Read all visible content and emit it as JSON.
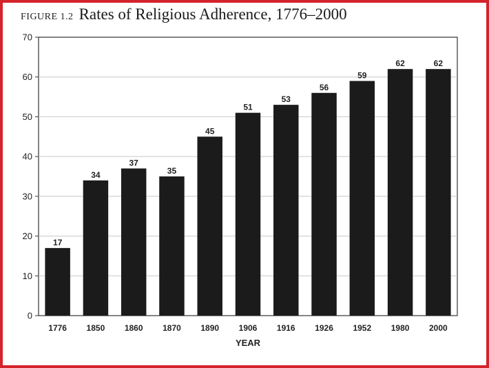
{
  "figure": {
    "label": "FIGURE 1.2",
    "title": "Rates of Religious Adherence, 1776–2000"
  },
  "colors": {
    "bar": "#1b1b1b",
    "frame": "#d4232a",
    "grid": "#c8c8c8"
  },
  "chart_data": {
    "type": "bar",
    "categories": [
      "1776",
      "1850",
      "1860",
      "1870",
      "1890",
      "1906",
      "1916",
      "1926",
      "1952",
      "1980",
      "2000"
    ],
    "values": [
      17,
      34,
      37,
      35,
      45,
      51,
      53,
      56,
      59,
      62,
      62
    ],
    "data_labels": [
      "17",
      "34",
      "37",
      "35",
      "45",
      "51",
      "53",
      "56",
      "59",
      "62",
      "62"
    ],
    "xlabel": "YEAR",
    "ylabel": "",
    "ylim": [
      0,
      70
    ],
    "yticks": [
      0,
      10,
      20,
      30,
      40,
      50,
      60,
      70
    ],
    "grid": true,
    "legend": false
  }
}
